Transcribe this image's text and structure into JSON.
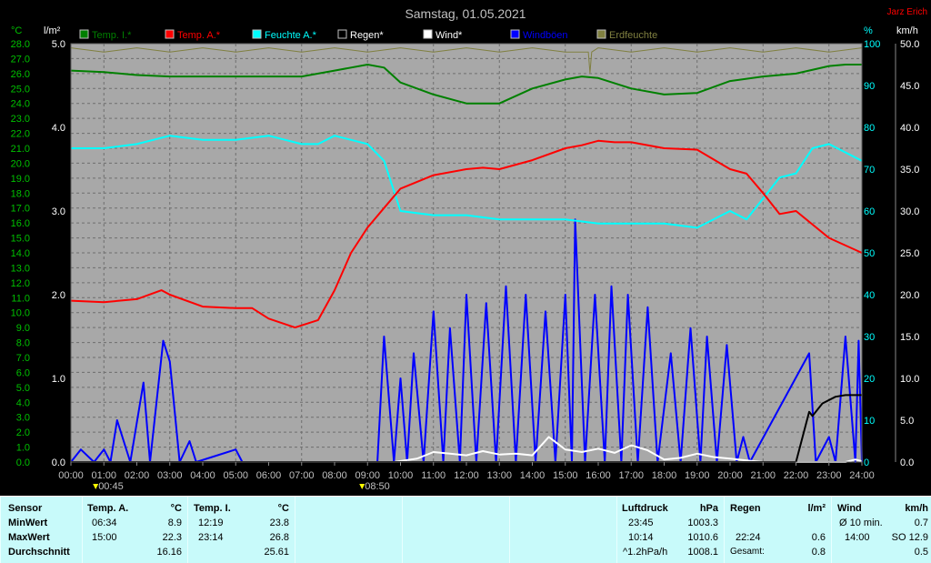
{
  "title": "Samstag, 01.05.2021",
  "author": "Jarz Erich",
  "axes": {
    "left_temp_unit": "°C",
    "left_rain_unit": "l/m²",
    "right_hum_unit": "%",
    "right_wind_unit": "km/h",
    "temp_ticks": [
      "0.0",
      "1.0",
      "2.0",
      "3.0",
      "4.0",
      "5.0",
      "6.0",
      "7.0",
      "8.0",
      "9.0",
      "10.0",
      "11.0",
      "12.0",
      "13.0",
      "14.0",
      "15.0",
      "16.0",
      "17.0",
      "18.0",
      "19.0",
      "20.0",
      "21.0",
      "22.0",
      "23.0",
      "24.0",
      "25.0",
      "26.0",
      "27.0",
      "28.0"
    ],
    "rain_ticks": [
      "0.0",
      "1.0",
      "2.0",
      "3.0",
      "4.0",
      "5.0"
    ],
    "hum_ticks": [
      "0",
      "10",
      "20",
      "30",
      "40",
      "50",
      "60",
      "70",
      "80",
      "90",
      "100"
    ],
    "wind_ticks": [
      "0.0",
      "5.0",
      "10.0",
      "15.0",
      "20.0",
      "25.0",
      "30.0",
      "35.0",
      "40.0",
      "45.0",
      "50.0"
    ],
    "time_ticks": [
      "00:00",
      "01:00",
      "02:00",
      "03:00",
      "04:00",
      "05:00",
      "06:00",
      "07:00",
      "08:00",
      "09:00",
      "10:00",
      "11:00",
      "12:00",
      "13:00",
      "14:00",
      "15:00",
      "16:00",
      "17:00",
      "18:00",
      "19:00",
      "20:00",
      "21:00",
      "22:00",
      "23:00",
      "24:00"
    ],
    "marker_times": [
      "00:45",
      "08:50"
    ]
  },
  "legend": [
    {
      "name": "Temp. I.*",
      "color": "#008000"
    },
    {
      "name": "Temp. A.*",
      "color": "#ff0000"
    },
    {
      "name": "Feuchte A.*",
      "color": "#00ffff"
    },
    {
      "name": "Regen*",
      "color": "#000000"
    },
    {
      "name": "Wind*",
      "color": "#ffffff"
    },
    {
      "name": "Windböen",
      "color": "#0000ff"
    },
    {
      "name": "Erdfeuchte",
      "color": "#808040"
    }
  ],
  "chart_data": {
    "type": "line",
    "title": "Samstag, 01.05.2021",
    "xlabel": "",
    "ylabel": "°C",
    "x_range": [
      0,
      24
    ],
    "temp_range": [
      0,
      28
    ],
    "rain_range": [
      0,
      5
    ],
    "hum_range": [
      0,
      100
    ],
    "wind_range": [
      0,
      50
    ],
    "grid": true,
    "series": [
      {
        "name": "Temp. I.*",
        "axis": "temp",
        "color": "#008000",
        "points": [
          [
            0,
            26.2
          ],
          [
            1,
            26.1
          ],
          [
            2,
            25.9
          ],
          [
            3,
            25.8
          ],
          [
            4,
            25.8
          ],
          [
            5,
            25.8
          ],
          [
            6,
            25.8
          ],
          [
            7,
            25.8
          ],
          [
            8,
            26.2
          ],
          [
            9,
            26.6
          ],
          [
            9.5,
            26.4
          ],
          [
            10,
            25.4
          ],
          [
            11,
            24.6
          ],
          [
            12,
            24.0
          ],
          [
            13,
            24.0
          ],
          [
            14,
            25.0
          ],
          [
            15,
            25.6
          ],
          [
            15.5,
            25.8
          ],
          [
            16,
            25.7
          ],
          [
            17,
            25.0
          ],
          [
            18,
            24.6
          ],
          [
            19,
            24.7
          ],
          [
            20,
            25.5
          ],
          [
            21,
            25.8
          ],
          [
            22,
            26.0
          ],
          [
            23,
            26.5
          ],
          [
            23.5,
            26.6
          ],
          [
            24,
            26.6
          ]
        ]
      },
      {
        "name": "Temp. A.*",
        "axis": "temp",
        "color": "#ff0000",
        "points": [
          [
            0,
            10.8
          ],
          [
            1,
            10.7
          ],
          [
            2,
            10.9
          ],
          [
            2.75,
            11.5
          ],
          [
            3,
            11.2
          ],
          [
            4,
            10.4
          ],
          [
            5,
            10.3
          ],
          [
            5.5,
            10.3
          ],
          [
            6,
            9.6
          ],
          [
            6.8,
            9.0
          ],
          [
            7.5,
            9.5
          ],
          [
            8,
            11.5
          ],
          [
            8.5,
            14.0
          ],
          [
            9,
            15.7
          ],
          [
            9.5,
            17.0
          ],
          [
            10,
            18.3
          ],
          [
            11,
            19.2
          ],
          [
            12,
            19.6
          ],
          [
            12.5,
            19.7
          ],
          [
            13,
            19.6
          ],
          [
            14,
            20.2
          ],
          [
            15,
            21.0
          ],
          [
            15.5,
            21.2
          ],
          [
            16,
            21.5
          ],
          [
            16.5,
            21.4
          ],
          [
            17,
            21.4
          ],
          [
            18,
            21.0
          ],
          [
            19,
            20.9
          ],
          [
            20,
            19.6
          ],
          [
            20.5,
            19.3
          ],
          [
            21,
            18.0
          ],
          [
            21.5,
            16.6
          ],
          [
            22,
            16.8
          ],
          [
            23,
            15.0
          ],
          [
            24,
            14.0
          ]
        ]
      },
      {
        "name": "Feuchte A.*",
        "axis": "hum",
        "color": "#00ffff",
        "points": [
          [
            0,
            75
          ],
          [
            1,
            75
          ],
          [
            2,
            76
          ],
          [
            3,
            78
          ],
          [
            4,
            77
          ],
          [
            5,
            77
          ],
          [
            6,
            78
          ],
          [
            7,
            76
          ],
          [
            7.5,
            76
          ],
          [
            8,
            78
          ],
          [
            9,
            76
          ],
          [
            9.5,
            72
          ],
          [
            10,
            60
          ],
          [
            11,
            59
          ],
          [
            12,
            59
          ],
          [
            13,
            58
          ],
          [
            14,
            58
          ],
          [
            15,
            58
          ],
          [
            16,
            57
          ],
          [
            17,
            57
          ],
          [
            18,
            57
          ],
          [
            19,
            56
          ],
          [
            20,
            60
          ],
          [
            20.5,
            58
          ],
          [
            21,
            63
          ],
          [
            21.5,
            68
          ],
          [
            22,
            69
          ],
          [
            22.5,
            75
          ],
          [
            23,
            76
          ],
          [
            24,
            72
          ]
        ]
      },
      {
        "name": "Regen*",
        "axis": "rain",
        "color": "#000000",
        "points": [
          [
            0,
            0
          ],
          [
            22.0,
            0
          ],
          [
            22.4,
            0.6
          ],
          [
            22.5,
            0.55
          ],
          [
            22.8,
            0.7
          ],
          [
            23.2,
            0.78
          ],
          [
            23.5,
            0.8
          ],
          [
            24,
            0.8
          ]
        ]
      },
      {
        "name": "Wind*",
        "axis": "wind",
        "color": "#ffffff",
        "points": [
          [
            0,
            0
          ],
          [
            9.8,
            0
          ],
          [
            10.5,
            0.4
          ],
          [
            11,
            1.2
          ],
          [
            11.5,
            1.0
          ],
          [
            12,
            0.8
          ],
          [
            12.5,
            1.3
          ],
          [
            13,
            0.9
          ],
          [
            13.5,
            1.0
          ],
          [
            14,
            0.8
          ],
          [
            14.5,
            3.0
          ],
          [
            15,
            1.5
          ],
          [
            15.5,
            1.2
          ],
          [
            16,
            1.6
          ],
          [
            16.5,
            1.1
          ],
          [
            17,
            2.0
          ],
          [
            17.5,
            1.4
          ],
          [
            18,
            0.3
          ],
          [
            18.5,
            0.5
          ],
          [
            19,
            1.0
          ],
          [
            19.5,
            0.6
          ],
          [
            20,
            0.4
          ],
          [
            20.5,
            0.2
          ],
          [
            21,
            0
          ],
          [
            23.5,
            0
          ],
          [
            23.8,
            0.3
          ],
          [
            24,
            0.1
          ]
        ]
      },
      {
        "name": "Windböen",
        "axis": "wind",
        "color": "#0000ff",
        "points": [
          [
            0,
            0
          ],
          [
            0.3,
            1.5
          ],
          [
            0.7,
            0
          ],
          [
            1.0,
            1.5
          ],
          [
            1.2,
            0
          ],
          [
            1.4,
            5.0
          ],
          [
            1.8,
            0
          ],
          [
            2.2,
            9.5
          ],
          [
            2.4,
            0
          ],
          [
            2.8,
            14.5
          ],
          [
            3.0,
            12.0
          ],
          [
            3.3,
            0
          ],
          [
            3.6,
            2.5
          ],
          [
            3.8,
            0
          ],
          [
            5.0,
            1.5
          ],
          [
            5.2,
            0
          ],
          [
            9.3,
            0
          ],
          [
            9.5,
            15.0
          ],
          [
            9.8,
            0
          ],
          [
            10.0,
            10.0
          ],
          [
            10.2,
            0
          ],
          [
            10.4,
            13.0
          ],
          [
            10.7,
            0
          ],
          [
            11.0,
            18.0
          ],
          [
            11.3,
            0
          ],
          [
            11.5,
            16.0
          ],
          [
            11.8,
            0
          ],
          [
            12.0,
            20.0
          ],
          [
            12.3,
            0
          ],
          [
            12.6,
            19.0
          ],
          [
            12.9,
            0
          ],
          [
            13.2,
            21.0
          ],
          [
            13.5,
            0
          ],
          [
            13.8,
            20.0
          ],
          [
            14.1,
            0
          ],
          [
            14.4,
            18.0
          ],
          [
            14.7,
            0
          ],
          [
            15.0,
            20.0
          ],
          [
            15.2,
            0
          ],
          [
            15.3,
            29.0
          ],
          [
            15.6,
            0
          ],
          [
            15.9,
            20.0
          ],
          [
            16.2,
            0
          ],
          [
            16.4,
            21.0
          ],
          [
            16.7,
            0
          ],
          [
            16.9,
            20.0
          ],
          [
            17.2,
            0
          ],
          [
            17.5,
            18.5
          ],
          [
            17.8,
            0
          ],
          [
            18.2,
            13.0
          ],
          [
            18.5,
            0
          ],
          [
            18.8,
            16.0
          ],
          [
            19.1,
            0
          ],
          [
            19.3,
            15.0
          ],
          [
            19.6,
            0
          ],
          [
            19.9,
            14.0
          ],
          [
            20.2,
            0
          ],
          [
            20.4,
            3.0
          ],
          [
            20.6,
            0
          ],
          [
            22.4,
            13.0
          ],
          [
            22.6,
            0
          ],
          [
            23.0,
            3.0
          ],
          [
            23.2,
            0
          ],
          [
            23.5,
            15.0
          ],
          [
            23.8,
            0
          ],
          [
            23.9,
            14.5
          ],
          [
            24,
            0
          ]
        ]
      },
      {
        "name": "Erdfeuchte",
        "axis": "hum",
        "color": "#808040",
        "points": [
          [
            0,
            99
          ],
          [
            1,
            98
          ],
          [
            2,
            99
          ],
          [
            3,
            98
          ],
          [
            4,
            99
          ],
          [
            5,
            98
          ],
          [
            6,
            99
          ],
          [
            7,
            98
          ],
          [
            8,
            99
          ],
          [
            9,
            98
          ],
          [
            10,
            99
          ],
          [
            11,
            98
          ],
          [
            12,
            99
          ],
          [
            13,
            98
          ],
          [
            14,
            99
          ],
          [
            15,
            98
          ],
          [
            15.7,
            98
          ],
          [
            15.75,
            93
          ],
          [
            15.8,
            98
          ],
          [
            16,
            99
          ],
          [
            17,
            98
          ],
          [
            18,
            99
          ],
          [
            19,
            98
          ],
          [
            20,
            99
          ],
          [
            21,
            98
          ],
          [
            22,
            99
          ],
          [
            23,
            98
          ],
          [
            24,
            99
          ]
        ]
      }
    ]
  },
  "stats": {
    "sensor": {
      "header": "Sensor",
      "min": "MinWert",
      "max": "MaxWert",
      "avg": "Durchschnitt"
    },
    "temp_a": {
      "header": "Temp. A.",
      "unit": "°C",
      "min_time": "06:34",
      "min_val": "8.9",
      "max_time": "15:00",
      "max_val": "22.3",
      "avg": "16.16"
    },
    "temp_i": {
      "header": "Temp. I.",
      "unit": "°C",
      "min_time": "12:19",
      "min_val": "23.8",
      "max_time": "23:14",
      "max_val": "26.8",
      "avg": "25.61"
    },
    "pressure": {
      "header": "Luftdruck",
      "unit": "hPa",
      "min_time": "23:45",
      "min_val": "1003.3",
      "max_time": "10:14",
      "max_val": "1010.6",
      "trend_label": "^1.2hPa/h",
      "trend_val": "1008.1"
    },
    "rain": {
      "header": "Regen",
      "unit": "l/m²",
      "max_time": "22:24",
      "max_val": "0.6",
      "total_label": "Gesamt:",
      "total_val": "0.8"
    },
    "wind": {
      "header": "Wind",
      "unit": "km/h",
      "min_label": "Ø 10 min.",
      "min_val": "0.7",
      "max_time": "14:00",
      "max_val": "SO 12.9",
      "avg": "0.5"
    }
  }
}
